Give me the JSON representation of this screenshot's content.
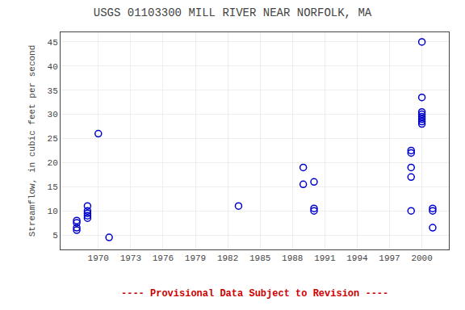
{
  "chart_data": {
    "type": "scatter",
    "title": "USGS 01103300 MILL RIVER NEAR NORFOLK, MA",
    "ylabel": "Streamflow, in cubic feet per second",
    "annotations": [
      {
        "text": "---- Provisional Data Subject to Revision ----",
        "color": "#cc0000"
      }
    ],
    "x": [
      1968,
      1968,
      1968,
      1968,
      1969,
      1969,
      1969,
      1969,
      1969,
      1970,
      1971,
      1983,
      1989,
      1989,
      1990,
      1990,
      1990,
      1999,
      1999,
      1999,
      1999,
      1999,
      2000,
      2000,
      2000,
      2000,
      2000,
      2000,
      2000,
      2000,
      2001,
      2001,
      2001
    ],
    "values": [
      6.5,
      6.0,
      7.5,
      8.0,
      10.0,
      9.5,
      9.0,
      8.5,
      11.0,
      26.0,
      4.5,
      11.0,
      19.0,
      15.5,
      16.0,
      10.5,
      10.0,
      22.0,
      22.5,
      19.0,
      17.0,
      10.0,
      45.0,
      33.5,
      30.0,
      29.5,
      29.0,
      28.5,
      28.0,
      30.5,
      10.5,
      10.0,
      6.5
    ],
    "color": "#0000CC",
    "marker": "open circle",
    "xlim": [
      1966.5,
      2002.5
    ],
    "ylim": [
      2,
      47
    ],
    "xticks": [
      1970,
      1973,
      1976,
      1979,
      1982,
      1985,
      1988,
      1991,
      1994,
      1997,
      2000
    ],
    "yticks": [
      5,
      10,
      15,
      20,
      25,
      30,
      35,
      40,
      45
    ],
    "grid": true
  }
}
